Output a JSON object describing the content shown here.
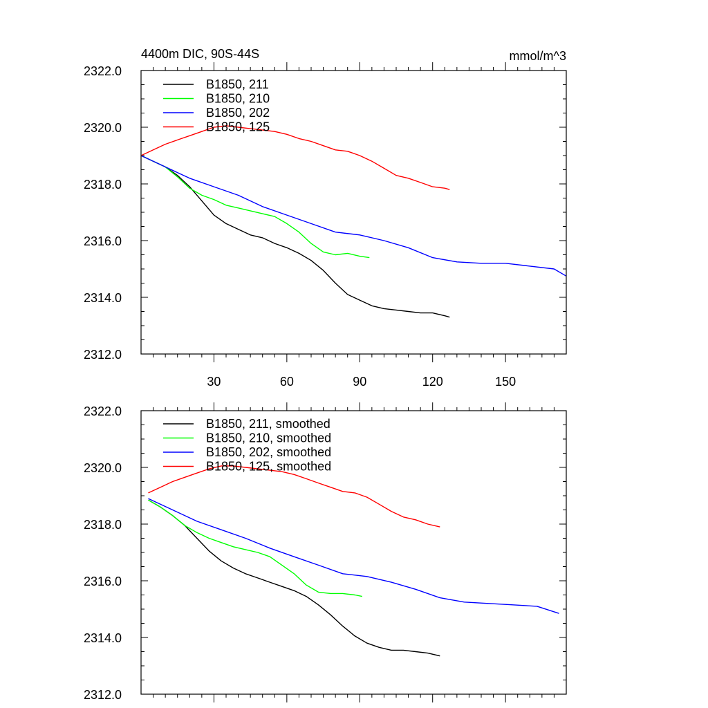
{
  "chart_data": [
    {
      "type": "line",
      "title_left": "4400m DIC, 90S-44S",
      "title_right": "mmol/m^3",
      "xlabel": "",
      "ylabel": "",
      "xlim": [
        0,
        175
      ],
      "ylim": [
        2312,
        2322
      ],
      "xticks": [
        30,
        60,
        90,
        120,
        150
      ],
      "xtick_labels": [
        "30",
        "60",
        "90",
        "120",
        "150"
      ],
      "yticks": [
        2312,
        2314,
        2316,
        2318,
        2320,
        2322
      ],
      "ytick_labels": [
        "2312.0",
        "2314.0",
        "2316.0",
        "2318.0",
        "2320.0",
        "2322.0"
      ],
      "legend_position": "top-left",
      "series": [
        {
          "name": "B1850, 211",
          "color": "#000000",
          "x": [
            0,
            5,
            10,
            15,
            20,
            25,
            30,
            35,
            40,
            45,
            50,
            55,
            60,
            65,
            70,
            75,
            80,
            85,
            90,
            95,
            100,
            105,
            110,
            115,
            120,
            125,
            127
          ],
          "y": [
            2319.0,
            2318.8,
            2318.6,
            2318.3,
            2317.9,
            2317.4,
            2316.9,
            2316.6,
            2316.4,
            2316.2,
            2316.1,
            2315.9,
            2315.75,
            2315.55,
            2315.3,
            2314.95,
            2314.5,
            2314.1,
            2313.9,
            2313.7,
            2313.6,
            2313.55,
            2313.5,
            2313.45,
            2313.45,
            2313.35,
            2313.3
          ]
        },
        {
          "name": "B1850, 210",
          "color": "#00ff00",
          "x": [
            0,
            5,
            10,
            15,
            20,
            25,
            30,
            35,
            40,
            45,
            50,
            55,
            60,
            65,
            70,
            75,
            80,
            85,
            90,
            94
          ],
          "y": [
            2319.0,
            2318.8,
            2318.6,
            2318.25,
            2317.85,
            2317.6,
            2317.45,
            2317.25,
            2317.15,
            2317.05,
            2316.95,
            2316.85,
            2316.6,
            2316.3,
            2315.9,
            2315.6,
            2315.5,
            2315.55,
            2315.45,
            2315.4
          ]
        },
        {
          "name": "B1850, 202",
          "color": "#0000ff",
          "x": [
            0,
            10,
            20,
            30,
            40,
            50,
            60,
            70,
            80,
            90,
            100,
            110,
            120,
            130,
            140,
            150,
            160,
            170,
            175
          ],
          "y": [
            2319.0,
            2318.6,
            2318.2,
            2317.9,
            2317.6,
            2317.2,
            2316.9,
            2316.6,
            2316.3,
            2316.2,
            2316.0,
            2315.75,
            2315.4,
            2315.25,
            2315.2,
            2315.2,
            2315.1,
            2315.0,
            2314.75
          ]
        },
        {
          "name": "B1850, 125",
          "color": "#ff0000",
          "x": [
            0,
            5,
            10,
            15,
            20,
            25,
            30,
            35,
            40,
            45,
            50,
            55,
            60,
            65,
            70,
            75,
            80,
            85,
            90,
            95,
            100,
            105,
            110,
            115,
            120,
            125,
            127
          ],
          "y": [
            2319.0,
            2319.2,
            2319.4,
            2319.55,
            2319.7,
            2319.85,
            2320.0,
            2320.05,
            2320.0,
            2319.95,
            2319.9,
            2319.85,
            2319.75,
            2319.6,
            2319.5,
            2319.35,
            2319.2,
            2319.15,
            2319.0,
            2318.8,
            2318.55,
            2318.3,
            2318.2,
            2318.05,
            2317.9,
            2317.85,
            2317.8
          ]
        }
      ]
    },
    {
      "type": "line",
      "title_left": "",
      "title_right": "",
      "xlabel": "",
      "ylabel": "",
      "xlim": [
        0,
        175
      ],
      "ylim": [
        2312,
        2322
      ],
      "xticks": [
        30,
        60,
        90,
        120,
        150
      ],
      "xtick_labels": [],
      "yticks": [
        2312,
        2314,
        2316,
        2318,
        2320,
        2322
      ],
      "ytick_labels": [
        "2312.0",
        "2314.0",
        "2316.0",
        "2318.0",
        "2320.0",
        "2322.0"
      ],
      "legend_position": "top-left",
      "series": [
        {
          "name": "B1850, 211, smoothed",
          "color": "#000000",
          "x": [
            3,
            8,
            13,
            18,
            23,
            28,
            33,
            38,
            43,
            48,
            53,
            58,
            63,
            68,
            73,
            78,
            83,
            88,
            93,
            98,
            103,
            108,
            113,
            118,
            123
          ],
          "y": [
            2318.85,
            2318.6,
            2318.3,
            2317.95,
            2317.5,
            2317.05,
            2316.7,
            2316.45,
            2316.25,
            2316.1,
            2315.95,
            2315.8,
            2315.65,
            2315.45,
            2315.15,
            2314.8,
            2314.4,
            2314.05,
            2313.8,
            2313.65,
            2313.55,
            2313.55,
            2313.5,
            2313.45,
            2313.35
          ]
        },
        {
          "name": "B1850, 210, smoothed",
          "color": "#00ff00",
          "x": [
            3,
            8,
            13,
            18,
            23,
            28,
            33,
            38,
            43,
            48,
            53,
            58,
            63,
            68,
            73,
            78,
            83,
            88,
            91
          ],
          "y": [
            2318.85,
            2318.6,
            2318.3,
            2317.95,
            2317.7,
            2317.5,
            2317.35,
            2317.2,
            2317.1,
            2317.0,
            2316.85,
            2316.55,
            2316.25,
            2315.85,
            2315.6,
            2315.55,
            2315.55,
            2315.5,
            2315.45
          ]
        },
        {
          "name": "B1850, 202, smoothed",
          "color": "#0000ff",
          "x": [
            3,
            13,
            23,
            33,
            43,
            53,
            63,
            73,
            83,
            93,
            103,
            113,
            123,
            133,
            143,
            153,
            163,
            172
          ],
          "y": [
            2318.9,
            2318.5,
            2318.1,
            2317.8,
            2317.5,
            2317.15,
            2316.85,
            2316.55,
            2316.25,
            2316.15,
            2315.95,
            2315.7,
            2315.4,
            2315.25,
            2315.2,
            2315.15,
            2315.1,
            2314.85
          ]
        },
        {
          "name": "B1850, 125, smoothed",
          "color": "#ff0000",
          "x": [
            3,
            8,
            13,
            18,
            23,
            28,
            33,
            38,
            43,
            48,
            53,
            58,
            63,
            68,
            73,
            78,
            83,
            88,
            93,
            98,
            103,
            108,
            113,
            118,
            123
          ],
          "y": [
            2319.1,
            2319.3,
            2319.5,
            2319.65,
            2319.8,
            2319.95,
            2320.05,
            2320.05,
            2320.0,
            2319.95,
            2319.9,
            2319.85,
            2319.75,
            2319.6,
            2319.45,
            2319.3,
            2319.15,
            2319.1,
            2318.95,
            2318.7,
            2318.45,
            2318.25,
            2318.15,
            2318.0,
            2317.9
          ]
        }
      ]
    }
  ]
}
